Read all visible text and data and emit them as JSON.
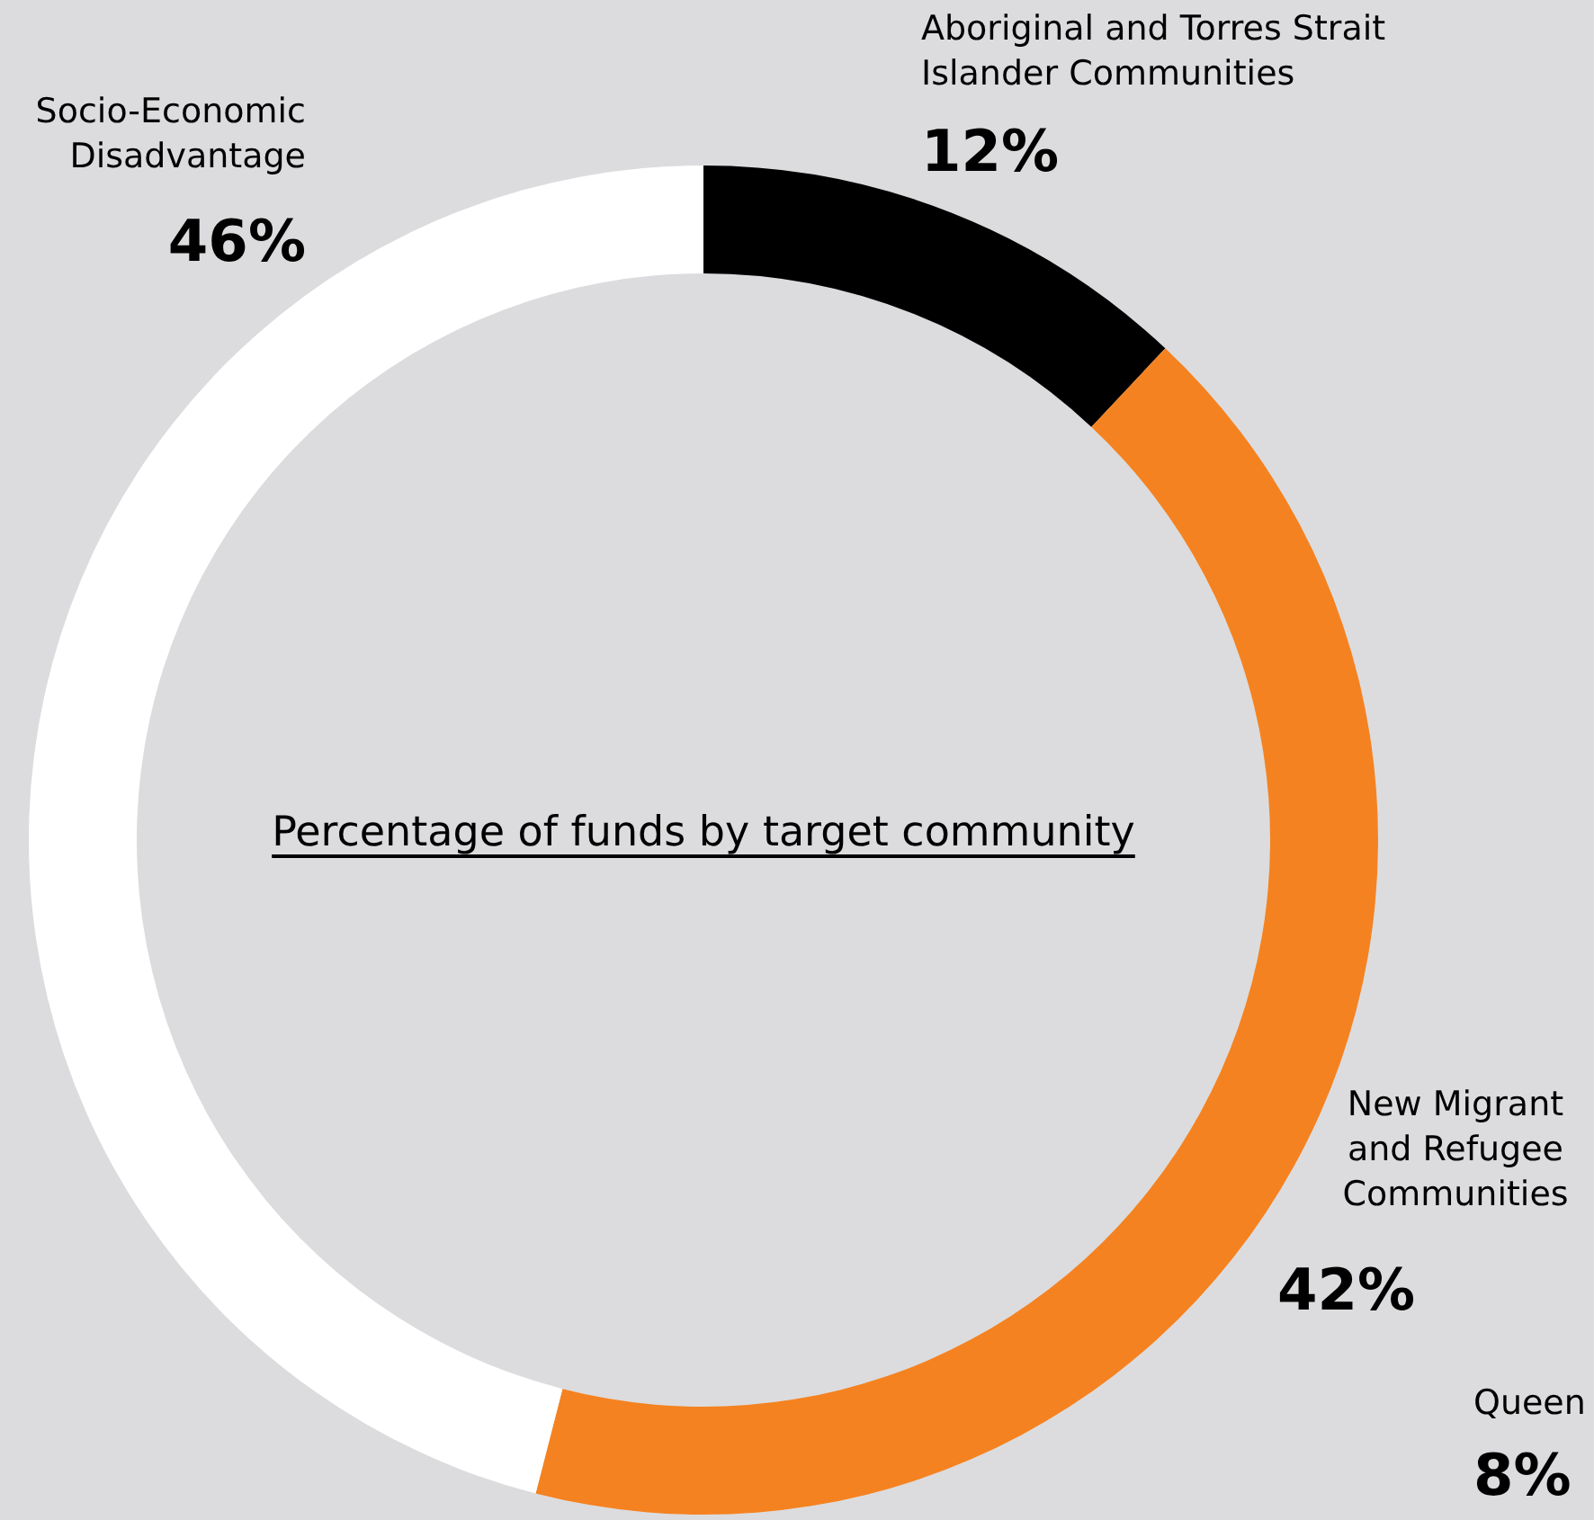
{
  "chart_data": {
    "type": "donut",
    "title": "Percentage of funds by target community",
    "categories": [
      "Aboriginal and Torres Strait Islander Communities",
      "New Migrant and Refugee Communities",
      "Socio-Economic Disadvantage"
    ],
    "values": [
      12,
      42,
      46
    ],
    "colors": [
      "#000000",
      "#f58220",
      "#ffffff"
    ],
    "value_labels": [
      "12%",
      "42%",
      "46%"
    ],
    "annotations": [
      "Queen",
      "8%"
    ],
    "legend": false
  }
}
